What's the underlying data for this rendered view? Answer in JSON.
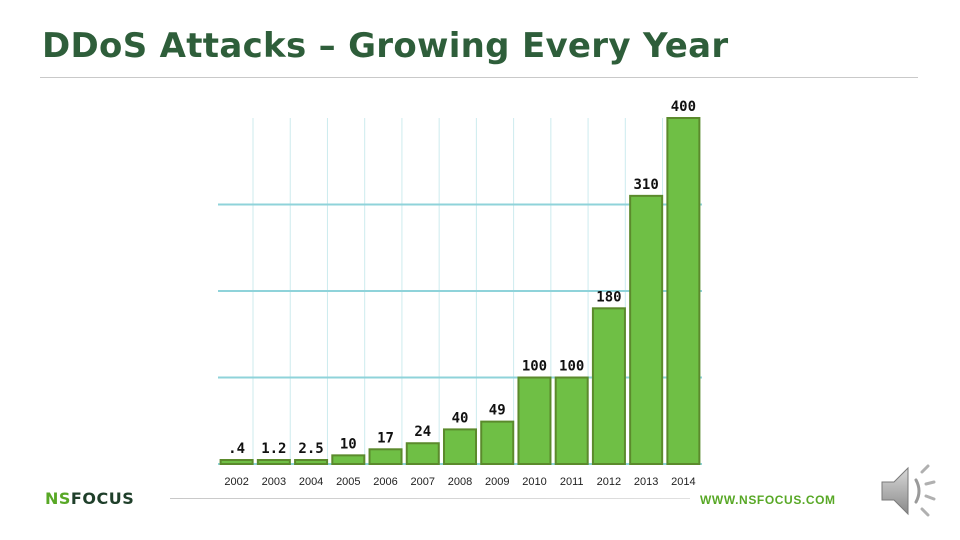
{
  "slide": {
    "title": "DDoS Attacks – Growing Every Year"
  },
  "footer": {
    "logo_prefix": "NS",
    "logo_suffix": "FOCUS",
    "website": "WWW.NSFOCUS.COM"
  },
  "colors": {
    "title": "#2e5e3a",
    "bar_fill": "#6fbf45",
    "bar_stroke": "#5b8a2c",
    "gridline": "#8fd3da",
    "brand_green": "#58a826"
  },
  "icons": [
    "speaker-icon"
  ],
  "chart_data": {
    "type": "bar",
    "categories": [
      "2002",
      "2003",
      "2004",
      "2005",
      "2006",
      "2007",
      "2008",
      "2009",
      "2010",
      "2011",
      "2012",
      "2013",
      "2014"
    ],
    "values": [
      0.4,
      1.2,
      2.5,
      10,
      17,
      24,
      40,
      49,
      100,
      100,
      180,
      310,
      400
    ],
    "data_labels": [
      ".4",
      "1.2",
      "2.5",
      "10",
      "17",
      "24",
      "40",
      "49",
      "100",
      "100",
      "180",
      "310",
      "400"
    ],
    "ylim": [
      0,
      400
    ],
    "grid": true
  }
}
